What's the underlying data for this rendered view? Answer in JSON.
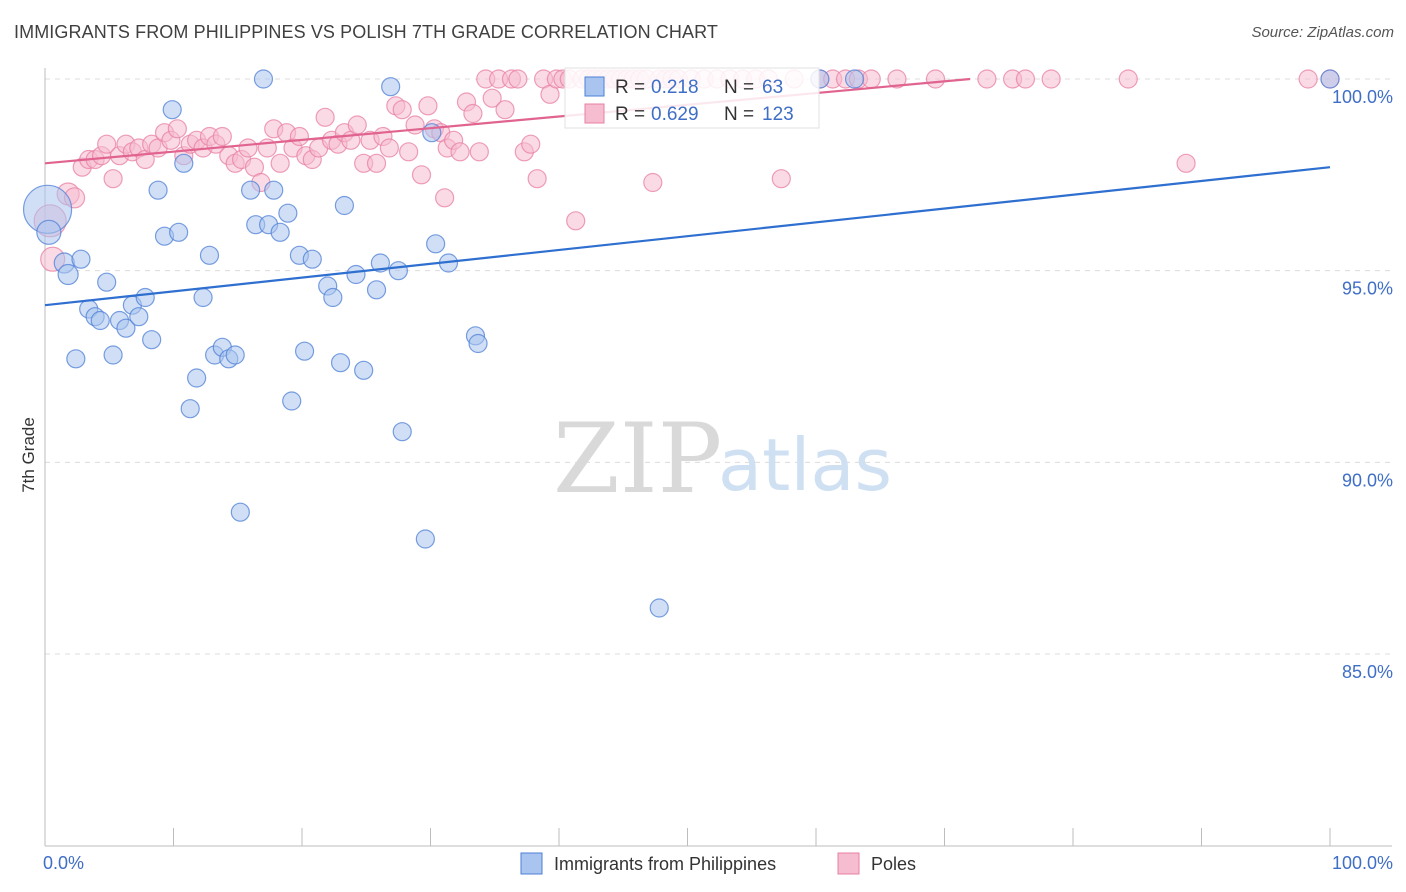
{
  "title": "IMMIGRANTS FROM PHILIPPINES VS POLISH 7TH GRADE CORRELATION CHART",
  "source": "Source: ZipAtlas.com",
  "watermark": {
    "zip": "ZIP",
    "atlas": "atlas"
  },
  "colors": {
    "blue": "#4d7fd6",
    "blue_fill": "#a9c4ee",
    "blue_line": "#2e6fd0",
    "pink": "#e87fa3",
    "pink_fill": "#f6bcd0",
    "pink_line": "#e0648f",
    "tick_text": "#3f6ec6",
    "grid": "#dcdcdc"
  },
  "chart_data": {
    "type": "scatter",
    "title": "IMMIGRANTS FROM PHILIPPINES VS POLISH 7TH GRADE CORRELATION CHART",
    "xlabel": "",
    "ylabel": "7th Grade",
    "xlim": [
      0,
      100
    ],
    "ylim": [
      80.5,
      100.8
    ],
    "x_tick_labels": [
      "0.0%",
      "100.0%"
    ],
    "y_ticks": [
      {
        "value": 100,
        "label": "100.0%"
      },
      {
        "value": 95,
        "label": "95.0%"
      },
      {
        "value": 90,
        "label": "90.0%"
      },
      {
        "value": 85,
        "label": "85.0%"
      }
    ],
    "grid": "horizontal dashed",
    "legend_position": "bottom-center",
    "stats_box_position": "top-center",
    "series": [
      {
        "name": "Immigrants from Philippines",
        "color": "blue",
        "R": "0.218",
        "N": "63",
        "trend": [
          [
            0,
            94.1
          ],
          [
            100,
            97.7
          ]
        ],
        "points": [
          [
            0.2,
            96.6,
            24
          ],
          [
            0.3,
            96.0,
            12
          ],
          [
            1.5,
            95.2,
            10
          ],
          [
            1.8,
            94.9,
            10
          ],
          [
            2.4,
            92.7,
            9
          ],
          [
            2.8,
            95.3,
            9
          ],
          [
            3.4,
            94.0,
            9
          ],
          [
            3.9,
            93.8,
            9
          ],
          [
            4.3,
            93.7,
            9
          ],
          [
            4.8,
            94.7,
            9
          ],
          [
            5.3,
            92.8,
            9
          ],
          [
            5.8,
            93.7,
            9
          ],
          [
            6.3,
            93.5,
            9
          ],
          [
            6.8,
            94.1,
            9
          ],
          [
            7.3,
            93.8,
            9
          ],
          [
            7.8,
            94.3,
            9
          ],
          [
            8.3,
            93.2,
            9
          ],
          [
            8.8,
            97.1,
            9
          ],
          [
            9.3,
            95.9,
            9
          ],
          [
            9.9,
            99.2,
            9
          ],
          [
            10.4,
            96.0,
            9
          ],
          [
            10.8,
            97.8,
            9
          ],
          [
            11.3,
            91.4,
            9
          ],
          [
            11.8,
            92.2,
            9
          ],
          [
            12.3,
            94.3,
            9
          ],
          [
            12.8,
            95.4,
            9
          ],
          [
            13.2,
            92.8,
            9
          ],
          [
            13.8,
            93.0,
            9
          ],
          [
            14.3,
            92.7,
            9
          ],
          [
            14.8,
            92.8,
            9
          ],
          [
            15.2,
            88.7,
            9
          ],
          [
            16.0,
            97.1,
            9
          ],
          [
            16.4,
            96.2,
            9
          ],
          [
            17.0,
            100.0,
            9
          ],
          [
            17.4,
            96.2,
            9
          ],
          [
            17.8,
            97.1,
            9
          ],
          [
            18.3,
            96.0,
            9
          ],
          [
            18.9,
            96.5,
            9
          ],
          [
            19.2,
            91.6,
            9
          ],
          [
            19.8,
            95.4,
            9
          ],
          [
            20.2,
            92.9,
            9
          ],
          [
            20.8,
            95.3,
            9
          ],
          [
            22.0,
            94.6,
            9
          ],
          [
            22.4,
            94.3,
            9
          ],
          [
            23.0,
            92.6,
            9
          ],
          [
            23.3,
            96.7,
            9
          ],
          [
            24.2,
            94.9,
            9
          ],
          [
            24.8,
            92.4,
            9
          ],
          [
            25.8,
            94.5,
            9
          ],
          [
            26.1,
            95.2,
            9
          ],
          [
            26.9,
            99.8,
            9
          ],
          [
            27.5,
            95.0,
            9
          ],
          [
            27.8,
            90.8,
            9
          ],
          [
            29.6,
            88.0,
            9
          ],
          [
            30.1,
            98.6,
            9
          ],
          [
            30.4,
            95.7,
            9
          ],
          [
            31.4,
            95.2,
            9
          ],
          [
            33.5,
            93.3,
            9
          ],
          [
            33.7,
            93.1,
            9
          ],
          [
            47.8,
            86.2,
            9
          ],
          [
            60.3,
            100.0,
            9
          ],
          [
            63.0,
            100.0,
            9
          ],
          [
            100.0,
            100.0,
            9
          ]
        ]
      },
      {
        "name": "Poles",
        "color": "pink",
        "R": "0.629",
        "N": "123",
        "trend": [
          [
            0,
            97.8
          ],
          [
            72,
            100.0
          ]
        ],
        "points": [
          [
            0.4,
            96.3,
            16
          ],
          [
            0.6,
            95.3,
            12
          ],
          [
            1.8,
            97.0,
            11
          ],
          [
            2.3,
            96.9,
            10
          ],
          [
            2.9,
            97.7,
            9
          ],
          [
            3.4,
            97.9,
            9
          ],
          [
            3.9,
            97.9,
            9
          ],
          [
            4.4,
            98.0,
            9
          ],
          [
            4.8,
            98.3,
            9
          ],
          [
            5.3,
            97.4,
            9
          ],
          [
            5.8,
            98.0,
            9
          ],
          [
            6.3,
            98.3,
            9
          ],
          [
            6.8,
            98.1,
            9
          ],
          [
            7.3,
            98.2,
            9
          ],
          [
            7.8,
            97.9,
            9
          ],
          [
            8.3,
            98.3,
            9
          ],
          [
            8.8,
            98.2,
            9
          ],
          [
            9.3,
            98.6,
            9
          ],
          [
            9.8,
            98.4,
            9
          ],
          [
            10.3,
            98.7,
            9
          ],
          [
            10.8,
            98.0,
            9
          ],
          [
            11.3,
            98.3,
            9
          ],
          [
            11.8,
            98.4,
            9
          ],
          [
            12.3,
            98.2,
            9
          ],
          [
            12.8,
            98.5,
            9
          ],
          [
            13.3,
            98.3,
            9
          ],
          [
            13.8,
            98.5,
            9
          ],
          [
            14.3,
            98.0,
            9
          ],
          [
            14.8,
            97.8,
            9
          ],
          [
            15.3,
            97.9,
            9
          ],
          [
            15.8,
            98.2,
            9
          ],
          [
            16.3,
            97.7,
            9
          ],
          [
            16.8,
            97.3,
            9
          ],
          [
            17.3,
            98.2,
            9
          ],
          [
            17.8,
            98.7,
            9
          ],
          [
            18.3,
            97.8,
            9
          ],
          [
            18.8,
            98.6,
            9
          ],
          [
            19.3,
            98.2,
            9
          ],
          [
            19.8,
            98.5,
            9
          ],
          [
            20.3,
            98.0,
            9
          ],
          [
            20.8,
            97.9,
            9
          ],
          [
            21.3,
            98.2,
            9
          ],
          [
            21.8,
            99.0,
            9
          ],
          [
            22.3,
            98.4,
            9
          ],
          [
            22.8,
            98.3,
            9
          ],
          [
            23.3,
            98.6,
            9
          ],
          [
            23.8,
            98.4,
            9
          ],
          [
            24.3,
            98.8,
            9
          ],
          [
            24.8,
            97.8,
            9
          ],
          [
            25.3,
            98.4,
            9
          ],
          [
            25.8,
            97.8,
            9
          ],
          [
            26.3,
            98.5,
            9
          ],
          [
            26.8,
            98.2,
            9
          ],
          [
            27.3,
            99.3,
            9
          ],
          [
            27.8,
            99.2,
            9
          ],
          [
            28.3,
            98.1,
            9
          ],
          [
            28.8,
            98.8,
            9
          ],
          [
            29.3,
            97.5,
            9
          ],
          [
            29.8,
            99.3,
            9
          ],
          [
            30.3,
            98.7,
            9
          ],
          [
            30.8,
            98.6,
            9
          ],
          [
            31.3,
            98.2,
            9
          ],
          [
            31.8,
            98.4,
            9
          ],
          [
            32.3,
            98.1,
            9
          ],
          [
            32.8,
            99.4,
            9
          ],
          [
            33.3,
            99.1,
            9
          ],
          [
            33.8,
            98.1,
            9
          ],
          [
            34.3,
            100.0,
            9
          ],
          [
            34.8,
            99.5,
            9
          ],
          [
            35.3,
            100.0,
            9
          ],
          [
            35.8,
            99.2,
            9
          ],
          [
            36.3,
            100.0,
            9
          ],
          [
            36.8,
            100.0,
            9
          ],
          [
            37.3,
            98.1,
            9
          ],
          [
            37.8,
            98.3,
            9
          ],
          [
            38.3,
            97.4,
            9
          ],
          [
            38.8,
            100.0,
            9
          ],
          [
            39.3,
            99.6,
            9
          ],
          [
            39.8,
            100.0,
            9
          ],
          [
            40.3,
            100.0,
            9
          ],
          [
            40.8,
            100.0,
            9
          ],
          [
            41.3,
            96.3,
            9
          ],
          [
            41.8,
            100.0,
            9
          ],
          [
            42.3,
            100.0,
            9
          ],
          [
            42.8,
            100.0,
            9
          ],
          [
            43.3,
            100.0,
            9
          ],
          [
            43.8,
            100.0,
            9
          ],
          [
            44.3,
            100.0,
            9
          ],
          [
            44.8,
            100.0,
            9
          ],
          [
            45.3,
            100.0,
            9
          ],
          [
            45.8,
            100.0,
            9
          ],
          [
            46.3,
            100.0,
            9
          ],
          [
            46.8,
            100.0,
            9
          ],
          [
            47.3,
            97.3,
            9
          ],
          [
            47.8,
            100.0,
            9
          ],
          [
            48.3,
            100.0,
            9
          ],
          [
            48.8,
            100.0,
            9
          ],
          [
            49.3,
            100.0,
            9
          ],
          [
            50.3,
            100.0,
            9
          ],
          [
            51.3,
            100.0,
            9
          ],
          [
            52.3,
            100.0,
            9
          ],
          [
            53.3,
            100.0,
            9
          ],
          [
            54.3,
            100.0,
            9
          ],
          [
            55.3,
            100.0,
            9
          ],
          [
            56.3,
            100.0,
            9
          ],
          [
            57.3,
            97.4,
            9
          ],
          [
            58.3,
            100.0,
            9
          ],
          [
            60.3,
            100.0,
            9
          ],
          [
            61.3,
            100.0,
            9
          ],
          [
            62.3,
            100.0,
            9
          ],
          [
            63.3,
            100.0,
            9
          ],
          [
            64.3,
            100.0,
            9
          ],
          [
            66.3,
            100.0,
            9
          ],
          [
            69.3,
            100.0,
            9
          ],
          [
            73.3,
            100.0,
            9
          ],
          [
            75.3,
            100.0,
            9
          ],
          [
            76.3,
            100.0,
            9
          ],
          [
            78.3,
            100.0,
            9
          ],
          [
            84.3,
            100.0,
            9
          ],
          [
            88.8,
            97.8,
            9
          ],
          [
            98.3,
            100.0,
            9
          ],
          [
            100.0,
            100.0,
            9
          ],
          [
            31.1,
            96.9,
            9
          ]
        ]
      }
    ]
  }
}
